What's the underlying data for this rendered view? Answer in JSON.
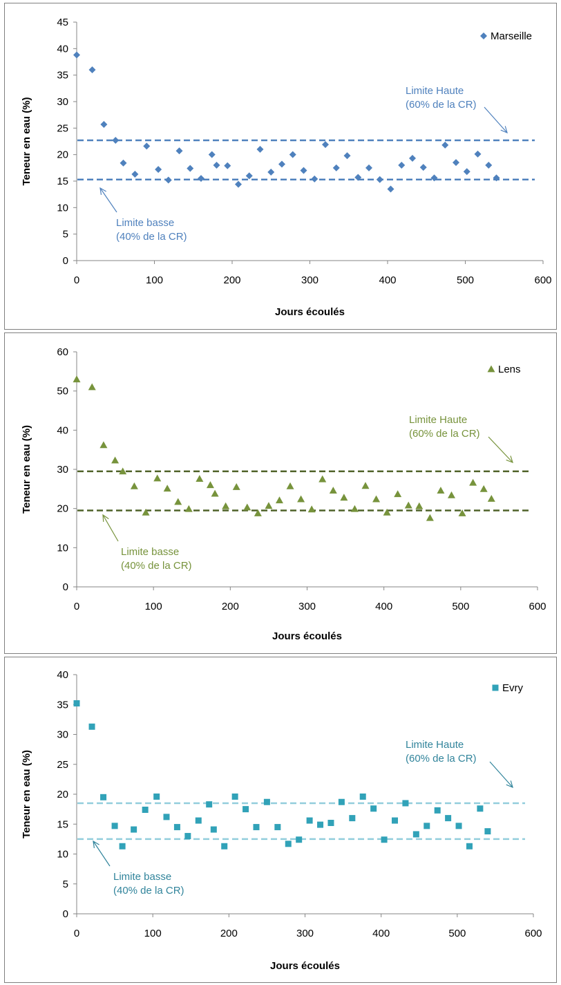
{
  "chart_data": [
    {
      "type": "scatter",
      "xlabel": "Jours écoulés",
      "ylabel": "Teneur en eau (%)",
      "xlim": [
        0,
        600
      ],
      "ylim": [
        0,
        45
      ],
      "xticks": [
        0,
        100,
        200,
        300,
        400,
        500,
        600
      ],
      "yticks": [
        0,
        5,
        10,
        15,
        20,
        25,
        30,
        35,
        40,
        45
      ],
      "legend_position": "top-right",
      "grid": false,
      "series": [
        {
          "name": "Marseille",
          "marker": "diamond",
          "color": "#4F81BD",
          "x": [
            0,
            20,
            35,
            50,
            60,
            75,
            90,
            105,
            118,
            132,
            146,
            160,
            174,
            180,
            194,
            208,
            222,
            236,
            250,
            264,
            278,
            292,
            306,
            320,
            334,
            348,
            362,
            376,
            390,
            404,
            418,
            432,
            446,
            460,
            474,
            488,
            502,
            516,
            530,
            540
          ],
          "y": [
            38.8,
            36.0,
            25.7,
            22.7,
            18.4,
            16.3,
            21.6,
            17.2,
            15.2,
            20.7,
            17.4,
            15.5,
            20.0,
            18.0,
            17.9,
            14.4,
            16.0,
            21.0,
            16.7,
            18.2,
            20.0,
            17.0,
            15.4,
            21.9,
            17.5,
            19.8,
            15.7,
            17.5,
            15.3,
            13.5,
            18.0,
            19.3,
            17.6,
            15.6,
            21.8,
            18.5,
            16.8,
            20.1,
            18.0,
            15.6
          ]
        }
      ],
      "lines": [
        {
          "y": 22.7,
          "color": "#4F81BD"
        },
        {
          "y": 15.3,
          "color": "#4F81BD"
        }
      ],
      "annotations": [
        {
          "text_1": "Limite Haute",
          "text_2": "(60% de la CR)",
          "color": "#4F81BD"
        },
        {
          "text_1": "Limite basse",
          "text_2": "(40% de la CR)",
          "color": "#4F81BD"
        }
      ]
    },
    {
      "type": "scatter",
      "xlabel": "Jours écoulés",
      "ylabel": "Teneur en eau (%)",
      "xlim": [
        0,
        600
      ],
      "ylim": [
        0,
        60
      ],
      "xticks": [
        0,
        100,
        200,
        300,
        400,
        500,
        600
      ],
      "yticks": [
        0,
        10,
        20,
        30,
        40,
        50,
        60
      ],
      "legend_position": "top-right",
      "grid": false,
      "series": [
        {
          "name": "Lens",
          "marker": "triangle",
          "color": "#77933C",
          "x": [
            0,
            20,
            35,
            50,
            60,
            75,
            90,
            105,
            118,
            132,
            146,
            160,
            174,
            180,
            194,
            208,
            222,
            236,
            250,
            264,
            278,
            292,
            306,
            320,
            334,
            348,
            362,
            376,
            390,
            404,
            418,
            432,
            446,
            460,
            474,
            488,
            502,
            516,
            530,
            540
          ],
          "y": [
            53.0,
            51.0,
            36.2,
            32.3,
            29.5,
            25.7,
            19.0,
            27.7,
            25.1,
            21.7,
            19.9,
            27.6,
            26.0,
            23.8,
            20.6,
            25.5,
            20.3,
            18.8,
            20.7,
            22.1,
            25.7,
            22.4,
            19.8,
            27.5,
            24.6,
            22.8,
            19.9,
            25.8,
            22.4,
            19.0,
            23.7,
            20.8,
            20.6,
            17.6,
            24.6,
            23.4,
            18.8,
            26.6,
            25.0,
            22.5
          ]
        }
      ],
      "lines": [
        {
          "y": 29.5,
          "color": "#4F6228"
        },
        {
          "y": 19.5,
          "color": "#4F6228"
        }
      ],
      "annotations": [
        {
          "text_1": "Limite Haute",
          "text_2": "(60% de la CR)",
          "color": "#77933C"
        },
        {
          "text_1": "Limite basse",
          "text_2": "(40% de la CR)",
          "color": "#77933C"
        }
      ]
    },
    {
      "type": "scatter",
      "xlabel": "Jours écoulés",
      "ylabel": "Teneur en eau (%)",
      "xlim": [
        0,
        600
      ],
      "ylim": [
        0,
        40
      ],
      "xticks": [
        0,
        100,
        200,
        300,
        400,
        500,
        600
      ],
      "yticks": [
        0,
        5,
        10,
        15,
        20,
        25,
        30,
        35,
        40
      ],
      "legend_position": "top-right",
      "grid": false,
      "series": [
        {
          "name": "Evry",
          "marker": "square",
          "color": "#31A2B8",
          "x": [
            0,
            20,
            35,
            50,
            60,
            75,
            90,
            105,
            118,
            132,
            146,
            160,
            174,
            180,
            194,
            208,
            222,
            236,
            250,
            264,
            278,
            292,
            306,
            320,
            334,
            348,
            362,
            376,
            390,
            404,
            418,
            432,
            446,
            460,
            474,
            488,
            502,
            516,
            530,
            540
          ],
          "y": [
            35.2,
            31.3,
            19.5,
            14.7,
            11.3,
            14.1,
            17.4,
            19.6,
            16.2,
            14.5,
            13.0,
            15.6,
            18.3,
            14.1,
            11.3,
            19.6,
            17.5,
            14.5,
            18.7,
            14.5,
            11.7,
            12.4,
            15.6,
            14.9,
            15.2,
            18.7,
            16.0,
            19.6,
            17.6,
            12.4,
            15.6,
            18.5,
            13.3,
            14.7,
            17.3,
            16.0,
            14.7,
            11.3,
            17.6,
            13.8
          ]
        }
      ],
      "lines": [
        {
          "y": 18.5,
          "color": "#92CDDC"
        },
        {
          "y": 12.5,
          "color": "#92CDDC"
        }
      ],
      "annotations": [
        {
          "text_1": "Limite Haute",
          "text_2": "(60% de la CR)",
          "color": "#31849B"
        },
        {
          "text_1": "Limite basse",
          "text_2": "(40% de la CR)",
          "color": "#31849B"
        }
      ]
    }
  ]
}
